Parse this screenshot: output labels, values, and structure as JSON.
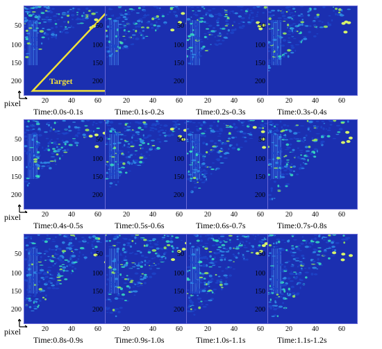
{
  "axis": {
    "pixel_label": "pixel",
    "y_ticks": [
      "50",
      "100",
      "150",
      "200"
    ],
    "x_ticks": [
      "20",
      "40",
      "60"
    ]
  },
  "target_label": "Target",
  "colors": {
    "background": "#1b2fb0",
    "target_outline": "#f2e23a",
    "hot": "#37e0c0"
  },
  "panels": [
    {
      "time": "Time:0.0s-0.1s"
    },
    {
      "time": "Time:0.1s-0.2s"
    },
    {
      "time": "Time:0.2s-0.3s"
    },
    {
      "time": "Time:0.3s-0.4s"
    },
    {
      "time": "Time:0.4s-0.5s"
    },
    {
      "time": "Time:0.5s-0.6s"
    },
    {
      "time": "Time:0.6s-0.7s"
    },
    {
      "time": "Time:0.7s-0.8s"
    },
    {
      "time": "Time:0.8s-0.9s"
    },
    {
      "time": "Time:0.9s-1.0s"
    },
    {
      "time": "Time:1.0s-1.1s"
    },
    {
      "time": "Time:1.1s-1.2s"
    }
  ]
}
